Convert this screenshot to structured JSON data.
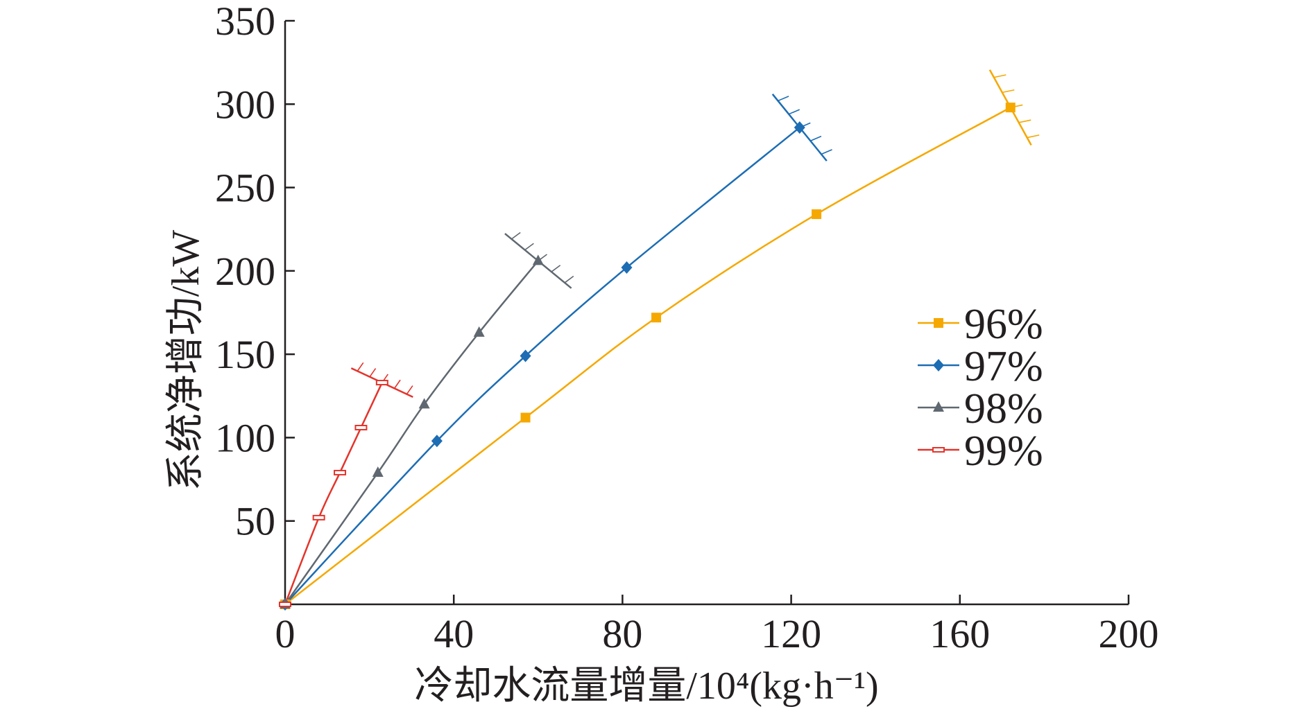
{
  "chart_data": {
    "type": "line",
    "xlabel": "冷却水流量增量/10⁴(kg·h⁻¹)",
    "ylabel": "系统净增功/kW",
    "xlim": [
      0,
      200
    ],
    "ylim": [
      0,
      350
    ],
    "x_ticks": [
      "0",
      "40",
      "80",
      "120",
      "160",
      "200"
    ],
    "y_ticks": [
      "50",
      "100",
      "150",
      "200",
      "250",
      "300",
      "350"
    ],
    "grid": false,
    "legend_position": "right",
    "series": [
      {
        "name": "96%",
        "color": "#f5a800",
        "marker": "square",
        "x": [
          0,
          57,
          88,
          126,
          172
        ],
        "y": [
          0,
          112,
          172,
          234,
          298
        ]
      },
      {
        "name": "97%",
        "color": "#1c6db4",
        "marker": "diamond",
        "x": [
          0,
          36,
          57,
          81,
          122
        ],
        "y": [
          0,
          98,
          149,
          202,
          286
        ]
      },
      {
        "name": "98%",
        "color": "#5f6870",
        "marker": "triangle",
        "x": [
          0,
          22,
          33,
          46,
          60
        ],
        "y": [
          0,
          79,
          120,
          163,
          206
        ]
      },
      {
        "name": "99%",
        "color": "#e4342b",
        "marker": "dash",
        "x": [
          0,
          8,
          13,
          18,
          23
        ],
        "y": [
          0,
          52,
          79,
          106,
          133
        ]
      }
    ]
  }
}
